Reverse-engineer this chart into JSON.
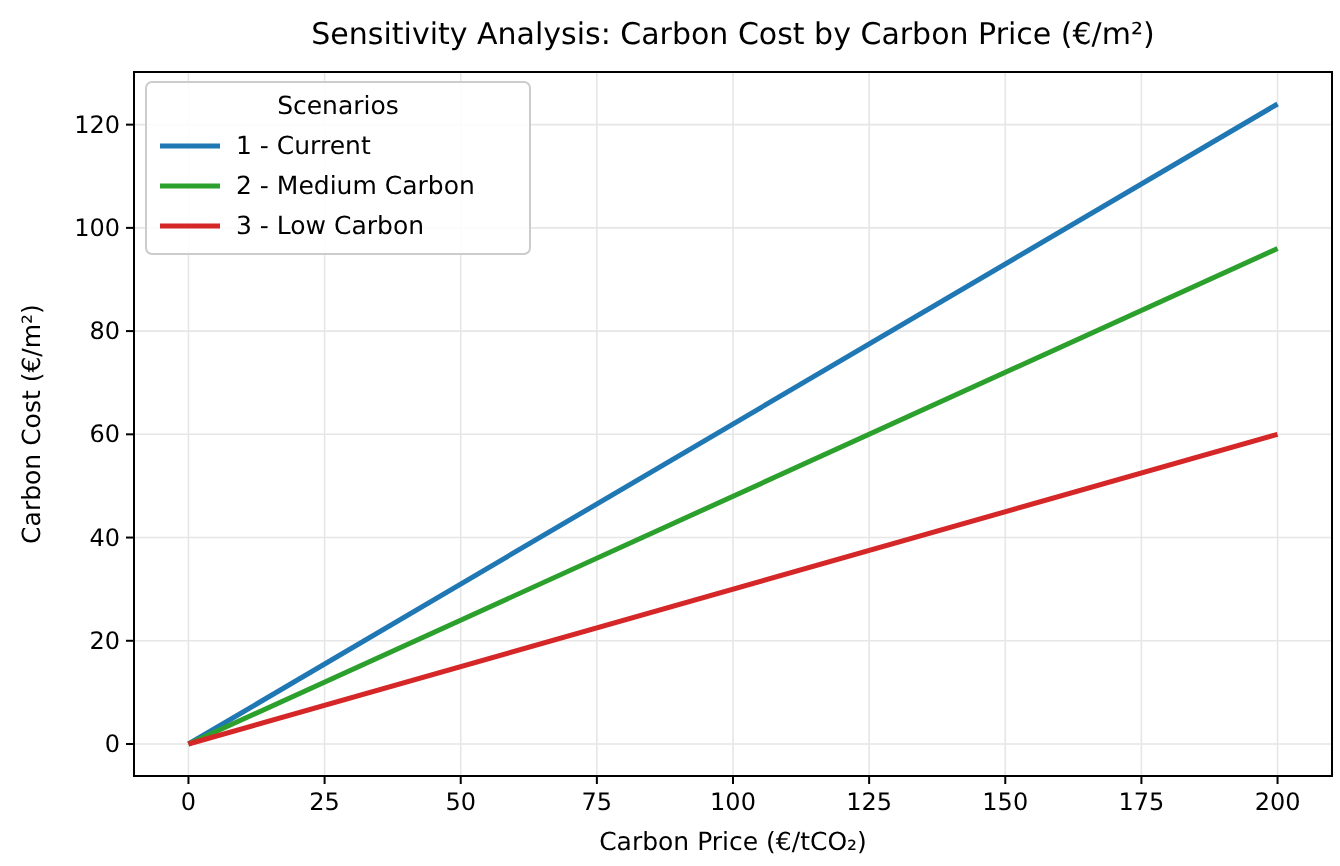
{
  "chart_data": {
    "type": "line",
    "title": "Sensitivity Analysis: Carbon Cost by Carbon Price (€/m²)",
    "xlabel": "Carbon Price (€/tCO₂)",
    "ylabel": "Carbon Cost (€/m²)",
    "legend_title": "Scenarios",
    "x": [
      0,
      200
    ],
    "series": [
      {
        "name": "1 - Current",
        "color": "#1f77b4",
        "values": [
          0,
          124
        ]
      },
      {
        "name": "2 - Medium Carbon",
        "color": "#2ca02c",
        "values": [
          0,
          96
        ]
      },
      {
        "name": "3 - Low Carbon",
        "color": "#d62728",
        "values": [
          0,
          60
        ]
      }
    ],
    "xlim": [
      -10,
      210
    ],
    "xticks": [
      0,
      25,
      50,
      75,
      100,
      125,
      150,
      175,
      200
    ],
    "ylim": [
      -6.2,
      130.2
    ],
    "yticks": [
      0,
      20,
      40,
      60,
      80,
      100,
      120
    ],
    "grid": true,
    "legend": "top left",
    "marker": "none",
    "line_style": "solid"
  }
}
